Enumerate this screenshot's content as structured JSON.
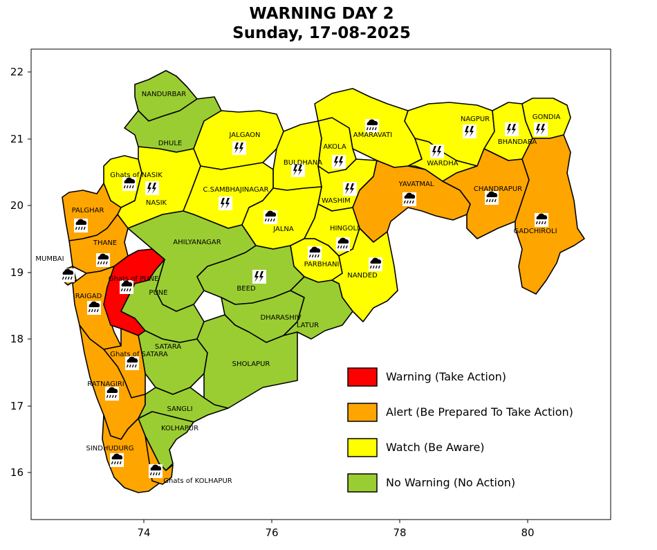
{
  "title": {
    "line1": "WARNING DAY 2",
    "line2": "Sunday, 17-08-2025"
  },
  "colors": {
    "warning": "#ff0000",
    "alert": "#ffa500",
    "watch": "#ffff00",
    "no_warning": "#9acd32",
    "border": "#000000"
  },
  "axes": {
    "x_ticks": [
      "74",
      "76",
      "78",
      "80"
    ],
    "y_ticks": [
      "16",
      "17",
      "18",
      "19",
      "20",
      "21",
      "22"
    ]
  },
  "legend": [
    {
      "level": "warning",
      "label": "Warning (Take Action)"
    },
    {
      "level": "alert",
      "label": "Alert (Be Prepared To Take Action)"
    },
    {
      "level": "watch",
      "label": "Watch (Be Aware)"
    },
    {
      "level": "no_warning",
      "label": "No Warning (No Action)"
    }
  ],
  "districts": [
    {
      "name": "NANDURBAR",
      "level": "no_warning",
      "icon": "none"
    },
    {
      "name": "DHULE",
      "level": "no_warning",
      "icon": "none"
    },
    {
      "name": "JALGAON",
      "level": "watch",
      "icon": "thunderstorm-icon"
    },
    {
      "name": "BULDHANA",
      "level": "watch",
      "icon": "thunderstorm-icon"
    },
    {
      "name": "AKOLA",
      "level": "watch",
      "icon": "thunderstorm-icon"
    },
    {
      "name": "AMARAVATI",
      "level": "watch",
      "icon": "heavy-rain-icon"
    },
    {
      "name": "NAGPUR",
      "level": "watch",
      "icon": "thunderstorm-icon"
    },
    {
      "name": "BHANDARA",
      "level": "watch",
      "icon": "thunderstorm-icon"
    },
    {
      "name": "GONDIA",
      "level": "watch",
      "icon": "thunderstorm-icon"
    },
    {
      "name": "WARDHA",
      "level": "watch",
      "icon": "thunderstorm-icon"
    },
    {
      "name": "WASHIM",
      "level": "watch",
      "icon": "thunderstorm-icon"
    },
    {
      "name": "YAVATMAL",
      "level": "alert",
      "icon": "heavy-rain-icon"
    },
    {
      "name": "CHANDRAPUR",
      "level": "alert",
      "icon": "heavy-rain-icon"
    },
    {
      "name": "GADCHIROLI",
      "level": "alert",
      "icon": "heavy-rain-icon"
    },
    {
      "name": "Ghats of NASIK",
      "level": "watch",
      "icon": "heavy-rain-icon"
    },
    {
      "name": "NASIK",
      "level": "watch",
      "icon": "thunderstorm-icon"
    },
    {
      "name": "C.SAMBHAJINAGAR",
      "level": "watch",
      "icon": "thunderstorm-icon"
    },
    {
      "name": "JALNA",
      "level": "watch",
      "icon": "heavy-rain-icon"
    },
    {
      "name": "HINGOLI",
      "level": "watch",
      "icon": "heavy-rain-icon"
    },
    {
      "name": "PARBHANI",
      "level": "watch",
      "icon": "heavy-rain-icon"
    },
    {
      "name": "NANDED",
      "level": "watch",
      "icon": "heavy-rain-icon"
    },
    {
      "name": "PALGHAR",
      "level": "alert",
      "icon": "heavy-rain-icon"
    },
    {
      "name": "THANE",
      "level": "alert",
      "icon": "heavy-rain-icon"
    },
    {
      "name": "MUMBAI",
      "level": "alert",
      "icon": "heavy-rain-icon"
    },
    {
      "name": "RAIGAD",
      "level": "alert",
      "icon": "heavy-rain-icon"
    },
    {
      "name": "Ghats of PUNE",
      "level": "warning",
      "icon": "heavy-rain-icon"
    },
    {
      "name": "PUNE",
      "level": "no_warning",
      "icon": "none"
    },
    {
      "name": "AHILYANAGAR",
      "level": "no_warning",
      "icon": "none"
    },
    {
      "name": "BEED",
      "level": "no_warning",
      "icon": "thunderstorm-icon"
    },
    {
      "name": "DHARASHIV",
      "level": "no_warning",
      "icon": "none"
    },
    {
      "name": "LATUR",
      "level": "no_warning",
      "icon": "none"
    },
    {
      "name": "SATARA",
      "level": "no_warning",
      "icon": "none"
    },
    {
      "name": "Ghats of SATARA",
      "level": "alert",
      "icon": "heavy-rain-icon"
    },
    {
      "name": "SHOLAPUR",
      "level": "no_warning",
      "icon": "none"
    },
    {
      "name": "RATNAGIRI",
      "level": "alert",
      "icon": "heavy-rain-icon"
    },
    {
      "name": "SANGLI",
      "level": "no_warning",
      "icon": "none"
    },
    {
      "name": "KOLHAPUR",
      "level": "no_warning",
      "icon": "none"
    },
    {
      "name": "SINDHUDURG",
      "level": "alert",
      "icon": "heavy-rain-icon"
    },
    {
      "name": "Ghats of KOLHAPUR",
      "level": "alert",
      "icon": "heavy-rain-icon"
    }
  ]
}
